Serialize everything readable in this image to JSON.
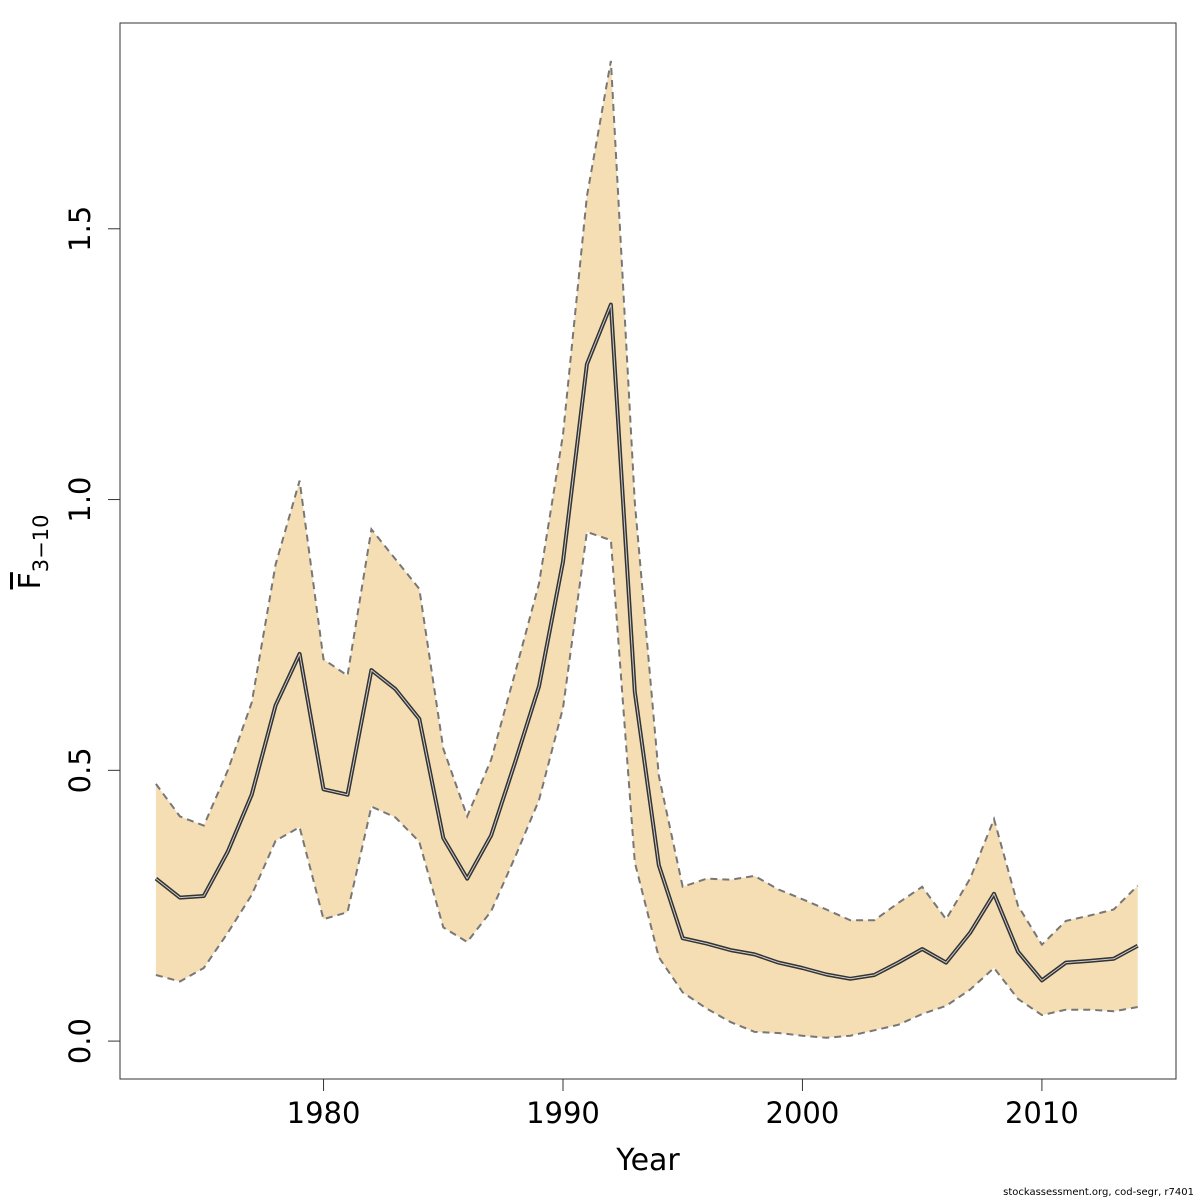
{
  "chart_data": {
    "type": "area",
    "xlabel": "Year",
    "ylabel": {
      "base": "F",
      "subscript": "3−10",
      "overline": true
    },
    "xlim": [
      1971.5,
      2015.6
    ],
    "ylim": [
      -0.07,
      1.88
    ],
    "xticks": [
      1980,
      1990,
      2000,
      2010
    ],
    "yticks": [
      0.0,
      0.5,
      1.0,
      1.5
    ],
    "ytick_labels": [
      "0.0",
      "0.5",
      "1.0",
      "1.5"
    ],
    "colors": {
      "band": "#f5deb3",
      "line": "#333333",
      "ci_line": "#777777",
      "frame": "#333333"
    },
    "x": [
      1973,
      1974,
      1975,
      1976,
      1977,
      1978,
      1979,
      1980,
      1981,
      1982,
      1983,
      1984,
      1985,
      1986,
      1987,
      1988,
      1989,
      1990,
      1991,
      1992,
      1993,
      1994,
      1995,
      1996,
      1997,
      1998,
      1999,
      2000,
      2001,
      2002,
      2003,
      2004,
      2005,
      2006,
      2007,
      2008,
      2009,
      2010,
      2011,
      2012,
      2013,
      2014
    ],
    "series": [
      {
        "values": [
          0.3,
          0.265,
          0.268,
          0.35,
          0.455,
          0.62,
          0.715,
          0.465,
          0.455,
          0.685,
          0.65,
          0.595,
          0.375,
          0.3,
          0.38,
          0.515,
          0.655,
          0.885,
          1.25,
          1.36,
          0.645,
          0.325,
          0.19,
          0.18,
          0.168,
          0.16,
          0.145,
          0.135,
          0.123,
          0.115,
          0.122,
          0.145,
          0.17,
          0.145,
          0.2,
          0.272,
          0.165,
          0.112,
          0.145,
          0.148,
          0.152,
          0.176
        ]
      },
      {
        "values": [
          0.475,
          0.415,
          0.398,
          0.5,
          0.625,
          0.88,
          1.035,
          0.705,
          0.675,
          0.945,
          0.89,
          0.835,
          0.54,
          0.415,
          0.52,
          0.68,
          0.845,
          1.12,
          1.56,
          1.81,
          0.995,
          0.49,
          0.285,
          0.3,
          0.298,
          0.305,
          0.28,
          0.262,
          0.243,
          0.223,
          0.223,
          0.255,
          0.285,
          0.225,
          0.3,
          0.41,
          0.25,
          0.178,
          0.222,
          0.232,
          0.243,
          0.287
        ]
      },
      {
        "values": [
          0.122,
          0.11,
          0.135,
          0.2,
          0.27,
          0.37,
          0.395,
          0.225,
          0.238,
          0.433,
          0.413,
          0.368,
          0.21,
          0.183,
          0.24,
          0.34,
          0.445,
          0.615,
          0.94,
          0.925,
          0.33,
          0.155,
          0.09,
          0.06,
          0.035,
          0.017,
          0.015,
          0.01,
          0.006,
          0.01,
          0.02,
          0.03,
          0.05,
          0.065,
          0.095,
          0.135,
          0.078,
          0.048,
          0.058,
          0.058,
          0.055,
          0.063
        ]
      }
    ]
  },
  "footnote": "stockassessment.org, cod-segr, r7401"
}
